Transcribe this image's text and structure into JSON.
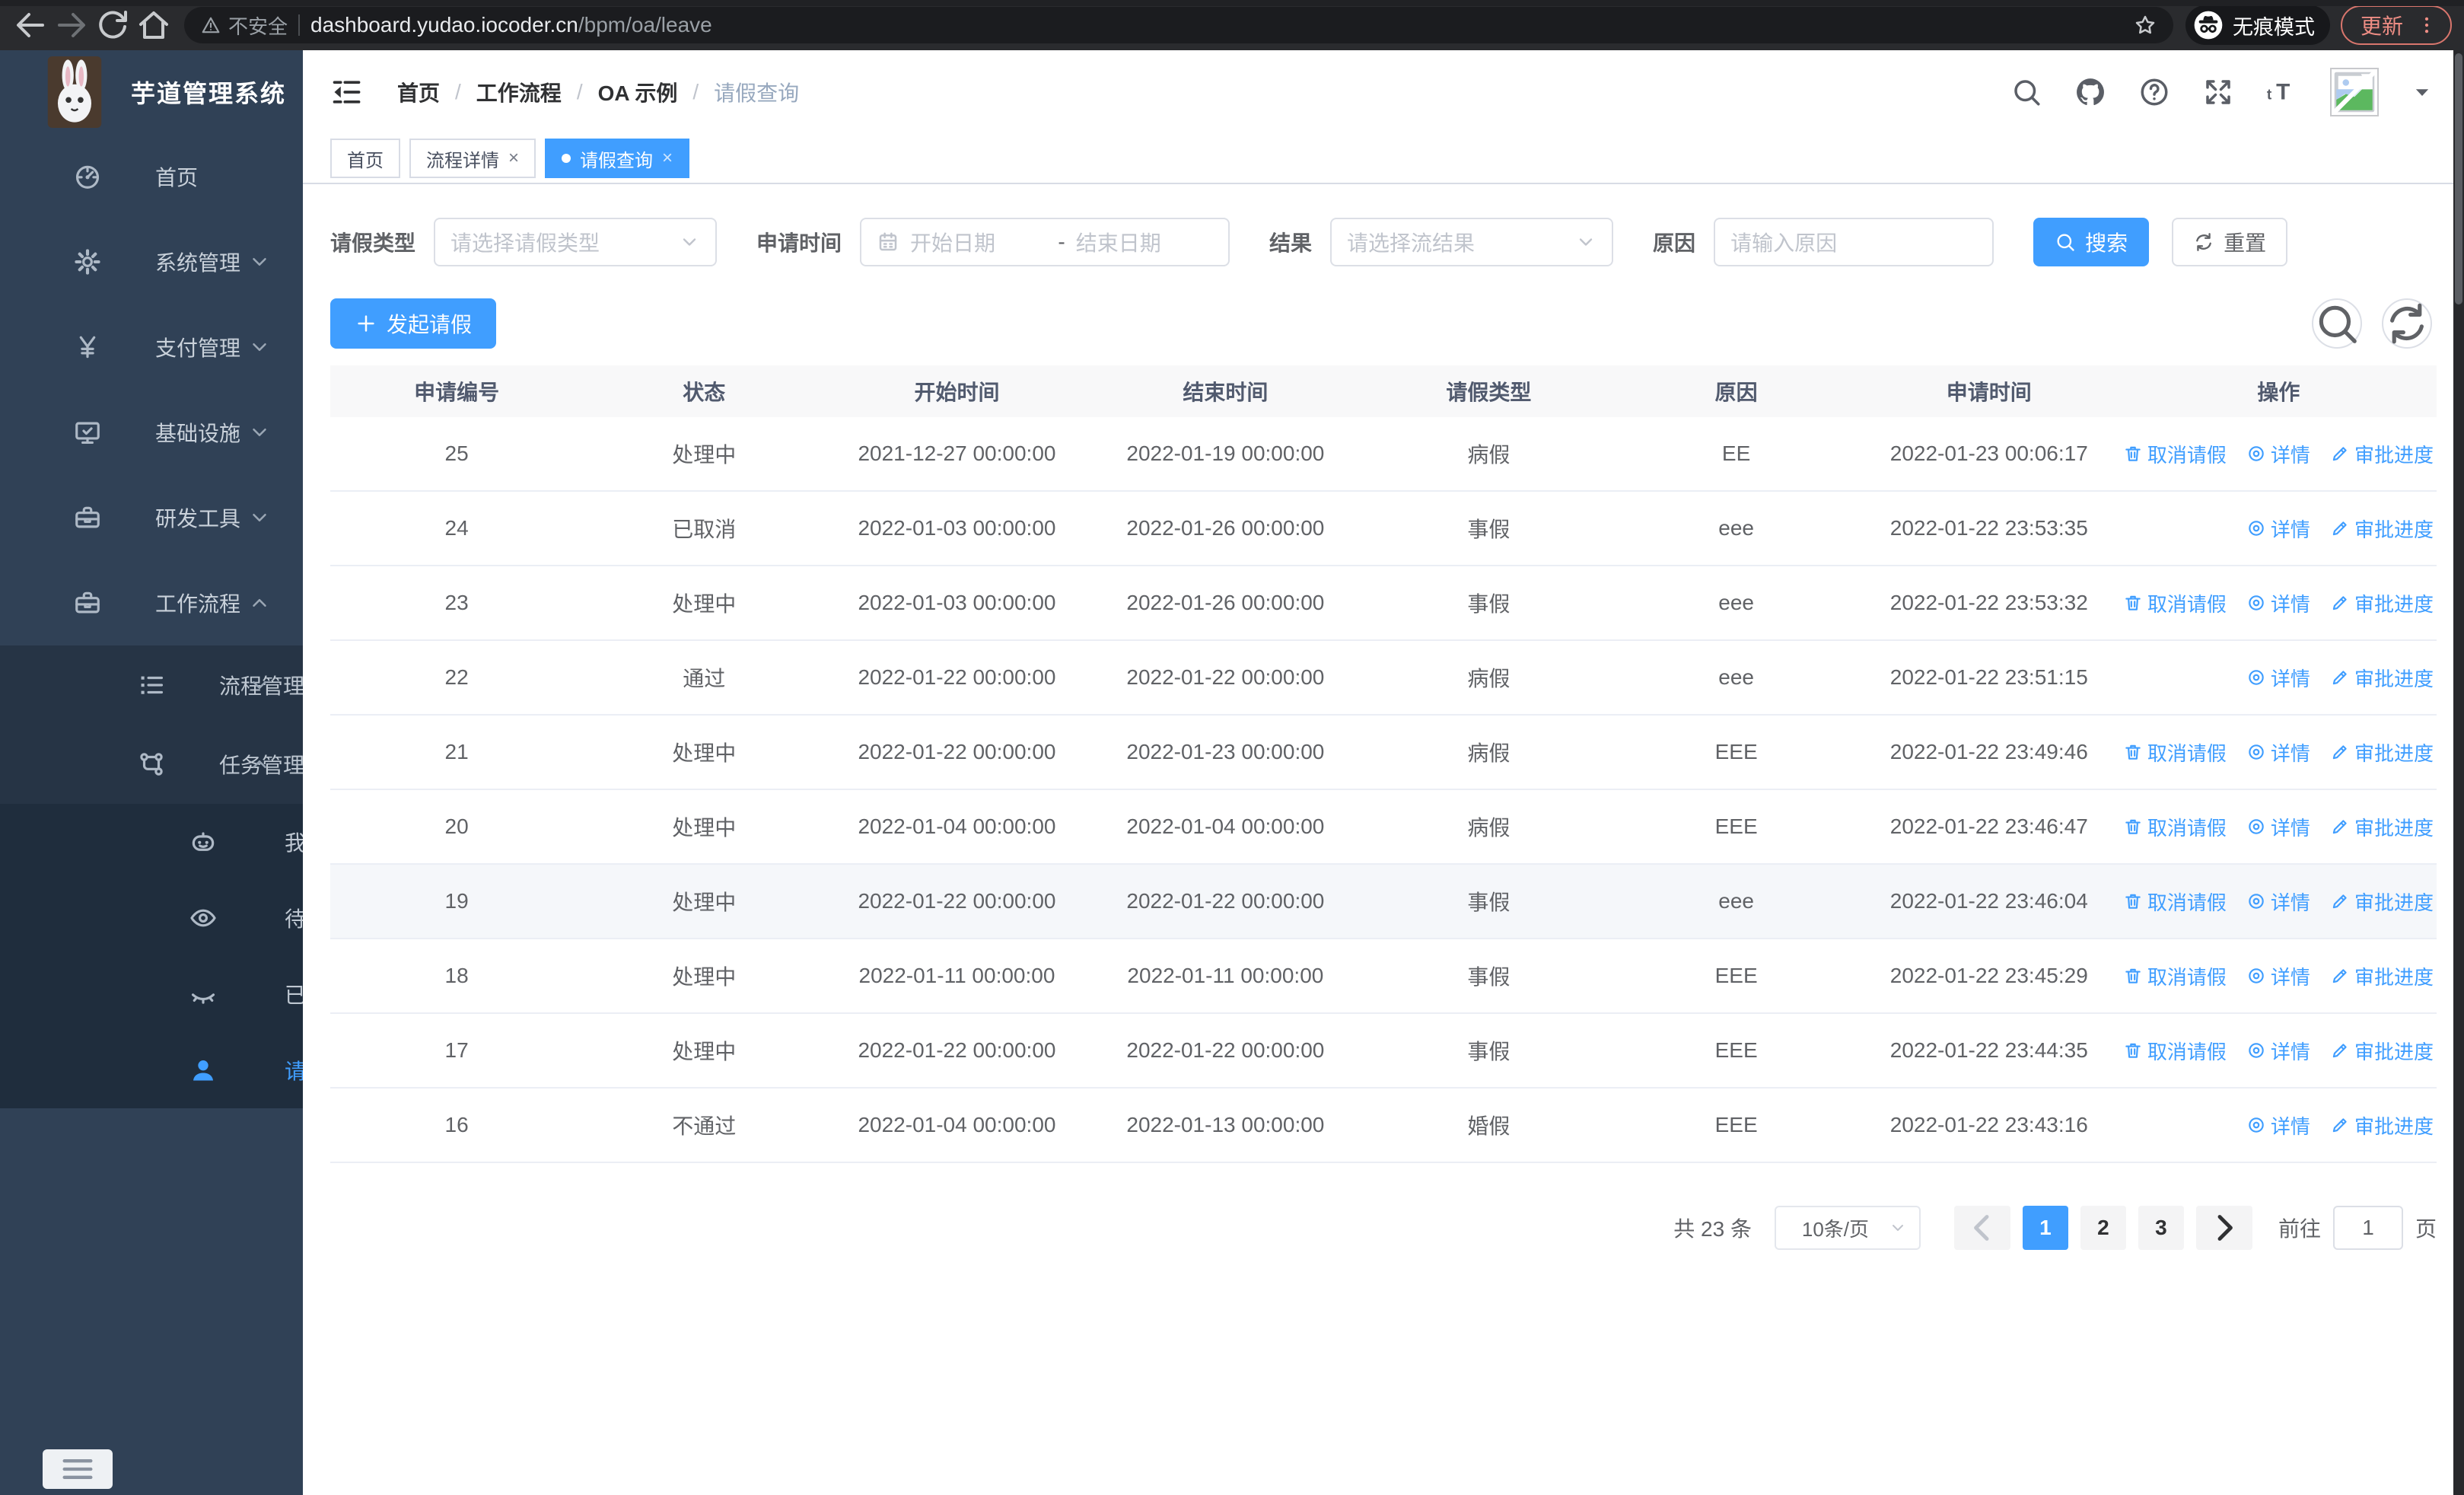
{
  "browser": {
    "insecure_label": "不安全",
    "url_host": "dashboard.yudao.iocoder.cn",
    "url_path": "/bpm/oa/leave",
    "incognito_label": "无痕模式",
    "update_label": "更新"
  },
  "sidebar": {
    "title": "芋道管理系统",
    "items": [
      {
        "name": "home",
        "label": "首页",
        "icon": "dashboard-icon",
        "level": 0,
        "chevron": null,
        "active": false
      },
      {
        "name": "system",
        "label": "系统管理",
        "icon": "gear-icon",
        "level": 0,
        "chevron": "down",
        "active": false
      },
      {
        "name": "payment",
        "label": "支付管理",
        "icon": "yen-icon",
        "level": 0,
        "chevron": "down",
        "active": false
      },
      {
        "name": "infra",
        "label": "基础设施",
        "icon": "monitor-icon",
        "level": 0,
        "chevron": "down",
        "active": false
      },
      {
        "name": "devtools",
        "label": "研发工具",
        "icon": "toolbox-icon",
        "level": 0,
        "chevron": "down",
        "active": false
      },
      {
        "name": "workflow",
        "label": "工作流程",
        "icon": "briefcase-icon",
        "level": 0,
        "chevron": "up",
        "active": false
      },
      {
        "name": "process-mgmt",
        "label": "流程管理",
        "icon": "list-tree-icon",
        "level": 1,
        "chevron": "down",
        "active": false
      },
      {
        "name": "task-mgmt",
        "label": "任务管理",
        "icon": "flow-icon",
        "level": 1,
        "chevron": "up",
        "active": false
      },
      {
        "name": "my-process",
        "label": "我的流程",
        "icon": "robot-icon",
        "level": 2,
        "chevron": null,
        "active": false
      },
      {
        "name": "todo-tasks",
        "label": "待办任务",
        "icon": "eye-icon",
        "level": 2,
        "chevron": null,
        "active": false
      },
      {
        "name": "done-tasks",
        "label": "已办任务",
        "icon": "eye-closed-icon",
        "level": 2,
        "chevron": null,
        "active": false
      },
      {
        "name": "leave-query",
        "label": "请假查询",
        "icon": "user-icon",
        "level": 2,
        "chevron": null,
        "active": true
      }
    ]
  },
  "header": {
    "breadcrumb": [
      "首页",
      "工作流程",
      "OA 示例",
      "请假查询"
    ]
  },
  "tabs": [
    {
      "label": "首页",
      "closable": false,
      "active": false
    },
    {
      "label": "流程详情",
      "closable": true,
      "active": false
    },
    {
      "label": "请假查询",
      "closable": true,
      "active": true
    }
  ],
  "filters": {
    "leave_type_label": "请假类型",
    "leave_type_placeholder": "请选择请假类型",
    "apply_time_label": "申请时间",
    "start_date_placeholder": "开始日期",
    "range_separator": "-",
    "end_date_placeholder": "结束日期",
    "result_label": "结果",
    "result_placeholder": "请选择流结果",
    "reason_label": "原因",
    "reason_placeholder": "请输入原因",
    "search_label": "搜索",
    "reset_label": "重置"
  },
  "toolbar": {
    "create_label": "发起请假"
  },
  "table": {
    "columns": [
      {
        "key": "id",
        "label": "申请编号",
        "width": "12%"
      },
      {
        "key": "status",
        "label": "状态",
        "width": "11.5%"
      },
      {
        "key": "start",
        "label": "开始时间",
        "width": "12.5%"
      },
      {
        "key": "end",
        "label": "结束时间",
        "width": "13%"
      },
      {
        "key": "type",
        "label": "请假类型",
        "width": "12%"
      },
      {
        "key": "reason",
        "label": "原因",
        "width": "11.5%"
      },
      {
        "key": "applyTime",
        "label": "申请时间",
        "width": "12.5%"
      },
      {
        "key": "actions",
        "label": "操作",
        "width": "15%"
      }
    ],
    "action_defs": {
      "cancel": {
        "label": "取消请假",
        "icon": "delete-icon"
      },
      "detail": {
        "label": "详情",
        "icon": "view-icon"
      },
      "progress": {
        "label": "审批进度",
        "icon": "edit-icon"
      }
    },
    "rows": [
      {
        "id": "25",
        "status": "处理中",
        "start": "2021-12-27 00:00:00",
        "end": "2022-01-19 00:00:00",
        "type": "病假",
        "reason": "EE",
        "applyTime": "2022-01-23 00:06:17",
        "actions": [
          "cancel",
          "detail",
          "progress"
        ],
        "highlighted": false
      },
      {
        "id": "24",
        "status": "已取消",
        "start": "2022-01-03 00:00:00",
        "end": "2022-01-26 00:00:00",
        "type": "事假",
        "reason": "eee",
        "applyTime": "2022-01-22 23:53:35",
        "actions": [
          "detail",
          "progress"
        ],
        "highlighted": false
      },
      {
        "id": "23",
        "status": "处理中",
        "start": "2022-01-03 00:00:00",
        "end": "2022-01-26 00:00:00",
        "type": "事假",
        "reason": "eee",
        "applyTime": "2022-01-22 23:53:32",
        "actions": [
          "cancel",
          "detail",
          "progress"
        ],
        "highlighted": false
      },
      {
        "id": "22",
        "status": "通过",
        "start": "2022-01-22 00:00:00",
        "end": "2022-01-22 00:00:00",
        "type": "病假",
        "reason": "eee",
        "applyTime": "2022-01-22 23:51:15",
        "actions": [
          "detail",
          "progress"
        ],
        "highlighted": false
      },
      {
        "id": "21",
        "status": "处理中",
        "start": "2022-01-22 00:00:00",
        "end": "2022-01-23 00:00:00",
        "type": "病假",
        "reason": "EEE",
        "applyTime": "2022-01-22 23:49:46",
        "actions": [
          "cancel",
          "detail",
          "progress"
        ],
        "highlighted": false
      },
      {
        "id": "20",
        "status": "处理中",
        "start": "2022-01-04 00:00:00",
        "end": "2022-01-04 00:00:00",
        "type": "病假",
        "reason": "EEE",
        "applyTime": "2022-01-22 23:46:47",
        "actions": [
          "cancel",
          "detail",
          "progress"
        ],
        "highlighted": false
      },
      {
        "id": "19",
        "status": "处理中",
        "start": "2022-01-22 00:00:00",
        "end": "2022-01-22 00:00:00",
        "type": "事假",
        "reason": "eee",
        "applyTime": "2022-01-22 23:46:04",
        "actions": [
          "cancel",
          "detail",
          "progress"
        ],
        "highlighted": true
      },
      {
        "id": "18",
        "status": "处理中",
        "start": "2022-01-11 00:00:00",
        "end": "2022-01-11 00:00:00",
        "type": "事假",
        "reason": "EEE",
        "applyTime": "2022-01-22 23:45:29",
        "actions": [
          "cancel",
          "detail",
          "progress"
        ],
        "highlighted": false
      },
      {
        "id": "17",
        "status": "处理中",
        "start": "2022-01-22 00:00:00",
        "end": "2022-01-22 00:00:00",
        "type": "事假",
        "reason": "EEE",
        "applyTime": "2022-01-22 23:44:35",
        "actions": [
          "cancel",
          "detail",
          "progress"
        ],
        "highlighted": false
      },
      {
        "id": "16",
        "status": "不通过",
        "start": "2022-01-04 00:00:00",
        "end": "2022-01-13 00:00:00",
        "type": "婚假",
        "reason": "EEE",
        "applyTime": "2022-01-22 23:43:16",
        "actions": [
          "detail",
          "progress"
        ],
        "highlighted": false
      }
    ]
  },
  "pagination": {
    "total_label": "共 23 条",
    "page_size": "10条/页",
    "pages": [
      "1",
      "2",
      "3"
    ],
    "active_page": "1",
    "goto_label": "前往",
    "goto_value": "1",
    "goto_suffix": "页"
  },
  "colors": {
    "primary": "#409eff",
    "sidebar_bg": "#304156",
    "sidebar_submenu_bg": "#1f2d3d",
    "update_pill": "#ee8d84",
    "table_border": "#ebeef5"
  },
  "icons": [
    "back-icon",
    "forward-icon",
    "reload-icon",
    "home-icon",
    "warning-icon",
    "star-icon",
    "incognito-icon",
    "dots-vertical-icon",
    "fold-icon",
    "search-icon",
    "github-icon",
    "help-icon",
    "fullscreen-icon",
    "fontsize-icon",
    "broken-image-icon",
    "caret-down-icon",
    "dashboard-icon",
    "gear-icon",
    "yen-icon",
    "monitor-icon",
    "toolbox-icon",
    "briefcase-icon",
    "list-tree-icon",
    "flow-icon",
    "robot-icon",
    "eye-icon",
    "eye-closed-icon",
    "user-icon",
    "calendar-icon",
    "chevron-down-icon",
    "chevron-up-icon",
    "plus-icon",
    "refresh-icon",
    "delete-icon",
    "view-icon",
    "edit-icon",
    "arrow-left-icon",
    "arrow-right-icon",
    "hamburger-icon"
  ]
}
